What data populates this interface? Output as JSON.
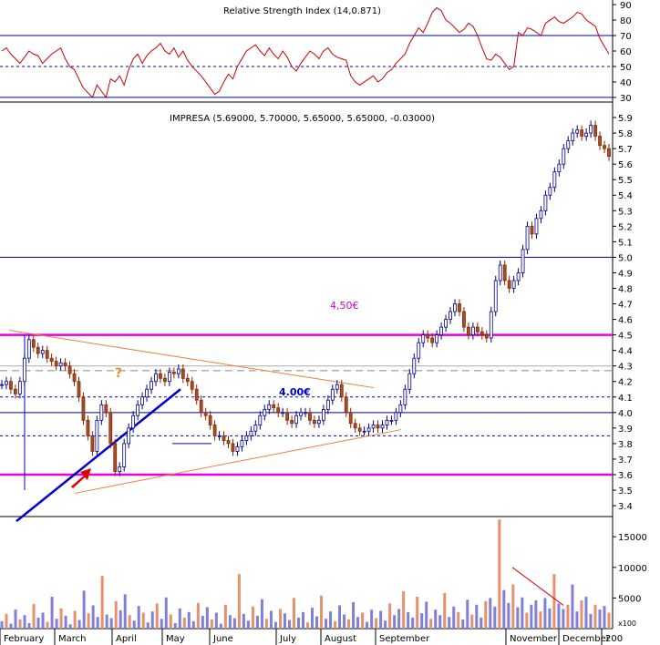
{
  "chart_data": [
    {
      "panel": "rsi",
      "type": "line",
      "title_overlay": "Relative Strength Index (14,0.871)",
      "yticks": [
        30,
        40,
        50,
        60,
        70,
        80,
        90
      ],
      "ylim": [
        27,
        93
      ],
      "reference_lines": [
        {
          "value": 70,
          "style": "solid"
        },
        {
          "value": 50,
          "style": "dashed"
        },
        {
          "value": 30,
          "style": "solid"
        }
      ],
      "series": [
        {
          "values": [
            60,
            62,
            58,
            55,
            52,
            56,
            60,
            58,
            57,
            52,
            55,
            58,
            60,
            62,
            55,
            50,
            48,
            42,
            36,
            33,
            30,
            38,
            34,
            30,
            42,
            40,
            44,
            38,
            48,
            55,
            58,
            52,
            57,
            60,
            62,
            65,
            60,
            58,
            62,
            56,
            60,
            54,
            50,
            47,
            44,
            40,
            36,
            32,
            34,
            40,
            45,
            42,
            50,
            55,
            60,
            62,
            64,
            60,
            57,
            62,
            58,
            55,
            60,
            56,
            50,
            47,
            52,
            56,
            60,
            58,
            55,
            60,
            62,
            58,
            56,
            55,
            54,
            44,
            40,
            38,
            40,
            42,
            44,
            40,
            42,
            46,
            48,
            52,
            55,
            58,
            65,
            70,
            75,
            72,
            78,
            85,
            88,
            86,
            80,
            78,
            75,
            72,
            74,
            78,
            76,
            70,
            62,
            55,
            54,
            58,
            56,
            52,
            48,
            50,
            72,
            70,
            75,
            74,
            72,
            70,
            78,
            80,
            82,
            79,
            78,
            80,
            82,
            85,
            84,
            80,
            78,
            76,
            68,
            63,
            58
          ]
        }
      ]
    },
    {
      "panel": "price",
      "type": "line",
      "title": "IMPRESA (5.69000, 5.70000, 5.65000, 5.65000, -0.03000)",
      "yticks": [
        3.4,
        3.5,
        3.6,
        3.7,
        3.8,
        3.9,
        4.0,
        4.1,
        4.2,
        4.3,
        4.4,
        4.5,
        4.6,
        4.7,
        4.8,
        4.9,
        5.0,
        5.1,
        5.2,
        5.3,
        5.4,
        5.5,
        5.6,
        5.7,
        5.8,
        5.9
      ],
      "ylim": [
        3.33,
        6.0
      ],
      "horizontal_levels": [
        {
          "value": 4.5,
          "color": "#e600e6",
          "style": "thick",
          "label": "4,50€"
        },
        {
          "value": 3.6,
          "color": "#e600e6",
          "style": "thick"
        },
        {
          "value": 5.0,
          "color": "#00008b",
          "style": "solid"
        },
        {
          "value": 4.0,
          "color": "#00008b",
          "style": "solid",
          "label": "4.00€"
        },
        {
          "value": 4.1,
          "color": "#0000cc",
          "style": "dashed"
        },
        {
          "value": 3.85,
          "color": "#0000cc",
          "style": "dashed"
        },
        {
          "value": 4.27,
          "color": "#888888",
          "style": "dashed"
        },
        {
          "value": 4.3,
          "color": "#aaaaaa",
          "style": "solid"
        }
      ],
      "annotations": [
        "?",
        "4,50€",
        "4.00€"
      ],
      "series": [
        {
          "values": [
            4.18,
            4.2,
            4.15,
            4.12,
            4.2,
            4.35,
            4.47,
            4.42,
            4.38,
            4.4,
            4.35,
            4.33,
            4.3,
            4.32,
            4.3,
            4.25,
            4.2,
            4.1,
            3.95,
            3.85,
            3.75,
            3.95,
            4.05,
            4.0,
            3.8,
            3.62,
            3.65,
            3.8,
            3.9,
            3.98,
            4.05,
            4.1,
            4.15,
            4.2,
            4.25,
            4.22,
            4.2,
            4.26,
            4.25,
            4.28,
            4.22,
            4.2,
            4.15,
            4.08,
            4.0,
            3.98,
            3.92,
            3.85,
            3.85,
            3.82,
            3.8,
            3.75,
            3.78,
            3.82,
            3.85,
            3.88,
            3.92,
            3.98,
            4.02,
            4.05,
            4.03,
            4.0,
            4.0,
            3.95,
            3.93,
            3.98,
            4.0,
            4.0,
            3.95,
            3.93,
            3.95,
            4.02,
            4.08,
            4.15,
            4.18,
            4.1,
            4.0,
            3.93,
            3.9,
            3.88,
            3.88,
            3.9,
            3.92,
            3.9,
            3.92,
            3.95,
            3.95,
            4.0,
            4.05,
            4.15,
            4.25,
            4.35,
            4.45,
            4.5,
            4.48,
            4.45,
            4.5,
            4.55,
            4.6,
            4.65,
            4.7,
            4.65,
            4.55,
            4.5,
            4.55,
            4.52,
            4.5,
            4.48,
            4.65,
            4.85,
            4.95,
            4.85,
            4.8,
            4.85,
            4.9,
            5.05,
            5.2,
            5.15,
            5.25,
            5.3,
            5.4,
            5.45,
            5.55,
            5.6,
            5.7,
            5.75,
            5.8,
            5.82,
            5.78,
            5.8,
            5.85,
            5.78,
            5.72,
            5.7,
            5.65
          ]
        }
      ]
    },
    {
      "panel": "volume",
      "type": "bar",
      "yticks": [
        5000,
        10000,
        15000
      ],
      "ylim": [
        0,
        18300
      ],
      "unit_label": "x100",
      "x_labels": [
        "February",
        "March",
        "April",
        "May",
        "June",
        "July",
        "August",
        "September",
        "November",
        "December",
        "200"
      ],
      "values": [
        1200,
        2400,
        800,
        3100,
        1500,
        2200,
        900,
        4000,
        1800,
        2600,
        1100,
        5200,
        1600,
        3300,
        2100,
        700,
        2900,
        1400,
        6200,
        2500,
        3800,
        1900,
        8600,
        2300,
        1700,
        4500,
        3000,
        5600,
        2200,
        1300,
        3700,
        2600,
        1000,
        2800,
        4100,
        1600,
        5100,
        2300,
        900,
        3300,
        1800,
        2700,
        1200,
        4200,
        2100,
        3500,
        1500,
        2600,
        800,
        3900,
        2200,
        1700,
        8900,
        2400,
        1300,
        3600,
        2100,
        4800,
        1600,
        2900,
        1100,
        3200,
        2500,
        1400,
        5000,
        1800,
        2700,
        1000,
        3400,
        2000,
        5400,
        1600,
        2800,
        1200,
        3800,
        2300,
        1500,
        4300,
        1900,
        2600,
        1100,
        3100,
        1700,
        2900,
        1300,
        4100,
        2200,
        3200,
        6100,
        2700,
        1800,
        5200,
        2500,
        4400,
        1600,
        3100,
        2200,
        5800,
        1900,
        3600,
        2700,
        1500,
        4700,
        2300,
        3900,
        1800,
        4500,
        5000,
        3600,
        17800,
        6300,
        4200,
        7200,
        3500,
        5100,
        2600,
        3900,
        4600,
        2800,
        5000,
        3300,
        8900,
        4100,
        3200,
        3900,
        7200,
        2800,
        4600,
        5200,
        2400,
        3900,
        3100,
        3700,
        2600
      ]
    }
  ]
}
